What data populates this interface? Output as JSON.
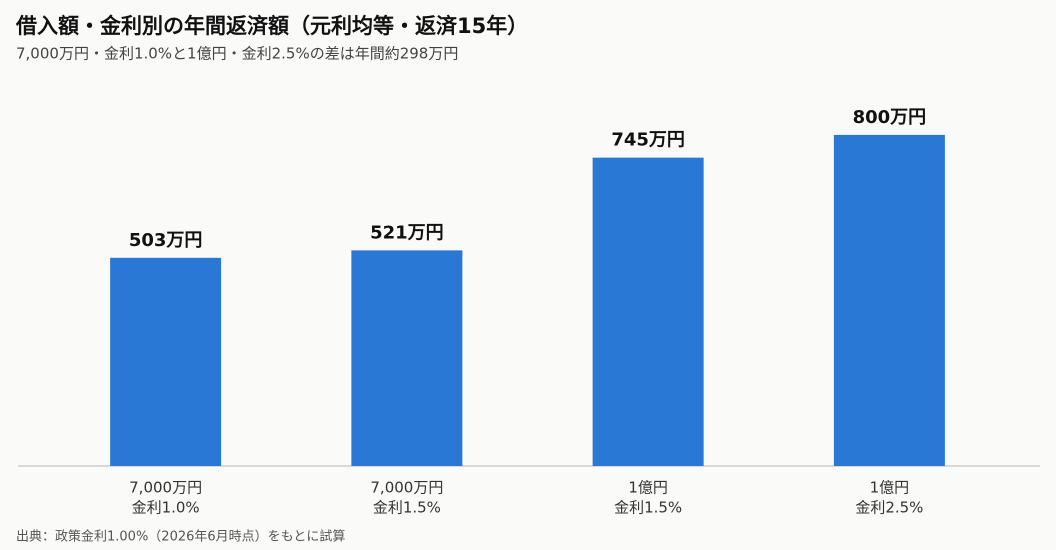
{
  "chart_data": {
    "type": "bar",
    "title": "借入額・金利別の年間返済額（元利均等・返済15年）",
    "subtitle": "7,000万円・金利1.0%と1億円・金利2.5%の差は年間約298万円",
    "categories": [
      [
        "7,000万円",
        "金利1.0%"
      ],
      [
        "7,000万円",
        "金利1.5%"
      ],
      [
        "1億円",
        "金利1.5%"
      ],
      [
        "1億円",
        "金利2.5%"
      ]
    ],
    "values": [
      503,
      521,
      745,
      800
    ],
    "value_labels": [
      "503万円",
      "521万円",
      "745万円",
      "800万円"
    ],
    "color": "#2a78d6",
    "ylim": [
      0,
      900
    ],
    "source": "出典：政策金利1.00%（2026年6月時点）をもとに試算"
  }
}
